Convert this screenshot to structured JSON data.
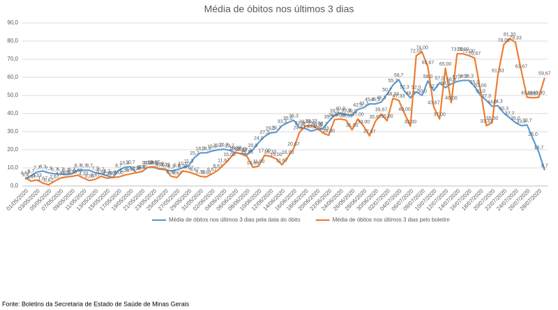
{
  "chart_data": {
    "type": "line",
    "title": "Média de óbitos nos últimos 3 dias",
    "source": "Fonte: Boletins da Secretaria de Estado de Saúde de Minas Gerais",
    "categories": [
      "01/05/2020",
      null,
      "03/05/2020",
      null,
      "05/05/2020",
      null,
      "07/05/2020",
      null,
      "09/05/2020",
      null,
      "11/05/2020",
      null,
      "13/05/2020",
      null,
      "15/05/2020",
      null,
      "17/05/2020",
      null,
      "19/05/2020",
      null,
      "21/05/2020",
      null,
      "23/05/2020",
      null,
      "25/05/2020",
      null,
      "27/05/2020",
      null,
      "29/05/2020",
      null,
      "31/05/2020",
      null,
      "02/06/2020",
      null,
      "04/06/2020",
      null,
      "06/06/2020",
      null,
      "08/06/2020",
      null,
      "10/06/2020",
      null,
      "12/06/2020",
      null,
      "14/06/2020",
      null,
      "16/06/2020",
      null,
      "18/06/2020",
      null,
      "20/06/2020",
      null,
      "22/06/2020",
      null,
      "24/06/2020",
      null,
      "26/06/2020",
      null,
      "28/06/2020",
      null,
      "30/06/2020",
      null,
      "02/07/2020",
      null,
      "04/07/2020",
      null,
      "06/07/2020",
      null,
      "08/07/2020",
      null,
      "10/07/2020",
      null,
      "12/07/2020",
      null,
      "14/07/2020",
      null,
      "16/07/2020",
      null,
      "18/07/2020",
      null,
      "20/07/2020",
      null,
      "22/07/2020",
      null,
      "24/07/2020",
      null,
      "26/07/2020",
      null,
      "28/07/2020",
      null
    ],
    "series": [
      {
        "name": "Média de óbitos nos últimos 3 dias pela data do óbito",
        "color": "#5b9bd5",
        "values": [
          3.7,
          5.7,
          7.7,
          8.3,
          7.3,
          6.7,
          6.7,
          6.3,
          6.7,
          8.7,
          8.7,
          8.7,
          7.3,
          6.7,
          5.7,
          4.7,
          8.7,
          10.3,
          10.7,
          7.3,
          8,
          10.3,
          10.3,
          9.3,
          9,
          8.3,
          9,
          10,
          11.3,
          15.7,
          18.3,
          18.3,
          19.3,
          20,
          20.3,
          19.7,
          18.3,
          18,
          17.3,
          20,
          24,
          27.3,
          29.3,
          29.7,
          33.3,
          35,
          36.3,
          32.3,
          31.7,
          30.3,
          31.3,
          31.7,
          35.7,
          39,
          40.3,
          39.3,
          39,
          42.3,
          43.3,
          45.3,
          45.3,
          46.3,
          50.7,
          55.7,
          58.7,
          52.3,
          48.7,
          52,
          50,
          58,
          52.7,
          57,
          54.3,
          56.3,
          57.7,
          58.3,
          58.3,
          55,
          50,
          47.3,
          44,
          44.3,
          40.3,
          37.7,
          35,
          33.3,
          33.7,
          26,
          18.7,
          8.7
        ],
        "value_labels": [
          "3,7",
          "5,7",
          "7,7",
          "8,3",
          "7,3",
          "6,7",
          "6,7",
          "6,3",
          "6,7",
          "8,7",
          "8,7",
          "8,7",
          "7,3",
          "6,7",
          "5,7",
          "4,7",
          "8,7",
          "10,3",
          "10,7",
          "7,3",
          "8,0",
          "10,3",
          "10,3",
          "9,3",
          "9,0",
          "8,3",
          "9,0",
          "10,0",
          "11,3",
          "15,7",
          "18,3",
          "18,3",
          "19,3",
          "20,0",
          "20,3",
          "19,7",
          "18,3",
          "18,0",
          "17,3",
          "20,0",
          "24,0",
          "27,3",
          "29,3",
          "29,7",
          "33,3",
          "35,0",
          "36,3",
          "32,3",
          "31,7",
          "30,3",
          "31,3",
          "31,7",
          "35,7",
          "39,0",
          "40,3",
          "39,3",
          "39,0",
          "42,3",
          "43,3",
          "45,3",
          "45,3",
          "46,3",
          "50,7",
          "55,7",
          "58,7",
          "52,3",
          "48,7",
          "52,0",
          "50,0",
          "58,0",
          "52,7",
          "57,0",
          "54,3",
          "56,3",
          "57,7",
          "58,3",
          "58,3",
          "55,0",
          "50,0",
          "47,3",
          "44,0",
          "44,3",
          "40,3",
          "37,7",
          "35,0",
          "33,3",
          "33,7",
          "26,0",
          "18,7",
          "8,7"
        ]
      },
      {
        "name": "Média de óbitos nos últimos 3 dias pelo boletim",
        "color": "#ed7d31",
        "values": [
          4.67,
          2.67,
          3.33,
          1.67,
          0.67,
          2.67,
          4.33,
          5,
          5.33,
          6,
          4.33,
          3,
          3.67,
          5.33,
          4.33,
          4.67,
          5,
          6,
          6.67,
          7.33,
          8,
          10.33,
          10.67,
          9.67,
          9.33,
          5.33,
          4.67,
          8.33,
          7.67,
          6.67,
          5.33,
          5,
          6.67,
          8.67,
          11.67,
          15,
          18.67,
          17.67,
          16.33,
          10.33,
          11,
          17,
          16.33,
          15,
          11.67,
          16,
          20.67,
          29.67,
          33,
          33.33,
          32,
          29.33,
          28,
          36.67,
          37,
          36.33,
          31,
          37,
          33,
          27.67,
          35.67,
          39.67,
          36,
          48.33,
          47.33,
          40,
          33,
          72,
          74,
          65.67,
          43.67,
          37,
          65,
          46,
          73,
          73,
          72,
          70.67,
          53,
          33.33,
          35,
          61.33,
          78,
          81.33,
          79.33,
          63.67,
          49,
          48.67,
          49,
          59.67
        ],
        "value_labels": [
          "4,67",
          "2,67",
          "3,33",
          "1,67",
          "0,67",
          "2,67",
          "4,33",
          "5,00",
          "5,33",
          "6,00",
          "4,33",
          "3,00",
          "3,67",
          "5,33",
          "4,33",
          "4,67",
          "5,00",
          "6,00",
          "6,67",
          "7,33",
          "8,00",
          "10,33",
          "10,67",
          "9,67",
          "9,33",
          "5,33",
          "4,67",
          "8,33",
          "7,67",
          "6,67",
          "5,33",
          "5,00",
          "6,67",
          "8,67",
          "11,67",
          "15,00",
          "18,67",
          "17,67",
          "16,33",
          "10,33",
          "11,00",
          "17,00",
          "16,33",
          "15,00",
          "11,67",
          "16,00",
          "20,67",
          "29,67",
          "33,00",
          "33,33",
          "32,00",
          "29,33",
          "28,00",
          "36,67",
          "37,00",
          "36,33",
          "31,00",
          "37,00",
          "33,00",
          "27,67",
          "35,67",
          "39,67",
          "36,00",
          "48,33",
          "47,33",
          "40,00",
          "33,00",
          "72,00",
          "74,00",
          "65,67",
          "43,67",
          "37,00",
          "65,00",
          "46,00",
          "73,00",
          "73,00",
          "72,00",
          "70,67",
          "53,00",
          "33,33",
          "35,00",
          "61,33",
          "78,00",
          "81,33",
          "79,33",
          "63,67",
          "49,00",
          "48,67",
          "49,00",
          "59,67"
        ]
      }
    ],
    "ylim": [
      0,
      90
    ],
    "yticks": [
      {
        "value": 0,
        "label": "0,0"
      },
      {
        "value": 10,
        "label": "10,0"
      },
      {
        "value": 20,
        "label": "20,0"
      },
      {
        "value": 30,
        "label": "30,0"
      },
      {
        "value": 40,
        "label": "40,0"
      },
      {
        "value": 50,
        "label": "50,0"
      },
      {
        "value": 60,
        "label": "60,0"
      },
      {
        "value": 70,
        "label": "70,0"
      },
      {
        "value": 80,
        "label": "80,0"
      },
      {
        "value": 90,
        "label": "90,0"
      }
    ],
    "grid": true,
    "legend": "bottom"
  }
}
